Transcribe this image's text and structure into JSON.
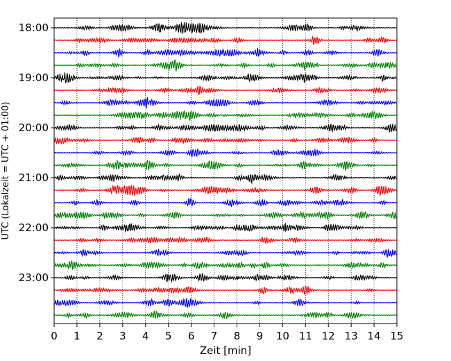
{
  "chart_data": {
    "type": "line",
    "title": "",
    "xlabel": "Zeit  [min]",
    "ylabel": "UTC (Lokalzeit = UTC + 01:00)",
    "xlim": [
      0,
      15
    ],
    "x_ticks": [
      "0",
      "1",
      "2",
      "3",
      "4",
      "5",
      "6",
      "7",
      "8",
      "9",
      "10",
      "11",
      "12",
      "13",
      "14",
      "15"
    ],
    "y_ticks": [
      "18:00",
      "19:00",
      "20:00",
      "21:00",
      "22:00",
      "23:00"
    ],
    "grid": {
      "vertical": true,
      "style": "dotted"
    },
    "legend": "none",
    "trace_interval_minutes": 15,
    "start_time": "18:00",
    "trace_colors": [
      "#000000",
      "#ff0000",
      "#0000ff",
      "#008000"
    ],
    "trace_count": 24
  }
}
